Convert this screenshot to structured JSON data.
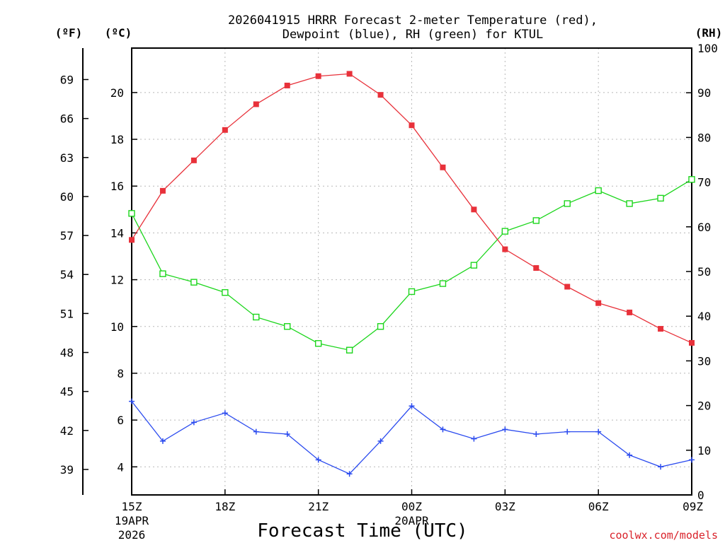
{
  "title_line1": "2026041915 HRRR Forecast 2-meter Temperature (red),",
  "title_line2": "Dewpoint (blue), RH (green) for KTUL",
  "credit": "coolwx.com/models",
  "colors": {
    "temperature": "#e8313a",
    "dewpoint": "#2b4bef",
    "rh": "#1dd61d"
  },
  "chart_data": {
    "type": "line",
    "title": "2026041915 HRRR Forecast 2-meter Temperature (red), Dewpoint (blue), RH (green) for KTUL",
    "xlabel": "Forecast Time (UTC)",
    "x": [
      "15Z",
      "16Z",
      "17Z",
      "18Z",
      "19Z",
      "20Z",
      "21Z",
      "22Z",
      "23Z",
      "00Z",
      "01Z",
      "02Z",
      "03Z",
      "04Z",
      "05Z",
      "06Z",
      "07Z",
      "08Z",
      "09Z"
    ],
    "x_ticks": [
      {
        "i": 0,
        "label": "15Z",
        "sub": [
          "19APR",
          "2026"
        ]
      },
      {
        "i": 3,
        "label": "18Z",
        "sub": []
      },
      {
        "i": 6,
        "label": "21Z",
        "sub": []
      },
      {
        "i": 9,
        "label": "00Z",
        "sub": [
          "20APR"
        ]
      },
      {
        "i": 12,
        "label": "03Z",
        "sub": []
      },
      {
        "i": 15,
        "label": "06Z",
        "sub": []
      },
      {
        "i": 18,
        "label": "09Z",
        "sub": []
      }
    ],
    "axes": {
      "celsius": {
        "unit": "(ºC)",
        "range": [
          2.8,
          21.9
        ],
        "ticks": [
          4,
          6,
          8,
          10,
          12,
          14,
          16,
          18,
          20
        ]
      },
      "fahrenheit": {
        "unit": "(ºF)",
        "ticks": [
          39,
          42,
          45,
          48,
          51,
          54,
          57,
          60,
          63,
          66,
          69
        ]
      },
      "rh": {
        "unit": "(RH)",
        "range": [
          0,
          100
        ],
        "ticks": [
          0,
          10,
          20,
          30,
          40,
          50,
          60,
          70,
          80,
          90,
          100
        ]
      }
    },
    "series": [
      {
        "name": "Temperature",
        "units": "C",
        "marker": "filled-square",
        "values": [
          13.7,
          15.8,
          17.1,
          18.4,
          19.5,
          20.3,
          20.7,
          20.8,
          19.9,
          18.6,
          16.8,
          15.0,
          13.3,
          12.5,
          11.7,
          11.0,
          10.6,
          9.9,
          9.3
        ]
      },
      {
        "name": "Dewpoint",
        "units": "C",
        "marker": "plus",
        "values": [
          6.8,
          5.1,
          5.9,
          6.3,
          5.5,
          5.4,
          4.3,
          3.7,
          5.1,
          6.6,
          5.6,
          5.2,
          5.6,
          5.4,
          5.5,
          5.5,
          4.5,
          4.0,
          4.3
        ]
      },
      {
        "name": "RH",
        "units": "%",
        "marker": "open-square",
        "values": [
          63.0,
          49.5,
          47.6,
          45.3,
          39.8,
          37.7,
          33.9,
          32.4,
          37.7,
          45.5,
          47.3,
          51.4,
          59.0,
          61.4,
          65.2,
          68.1,
          65.2,
          66.4,
          70.6
        ]
      }
    ]
  }
}
